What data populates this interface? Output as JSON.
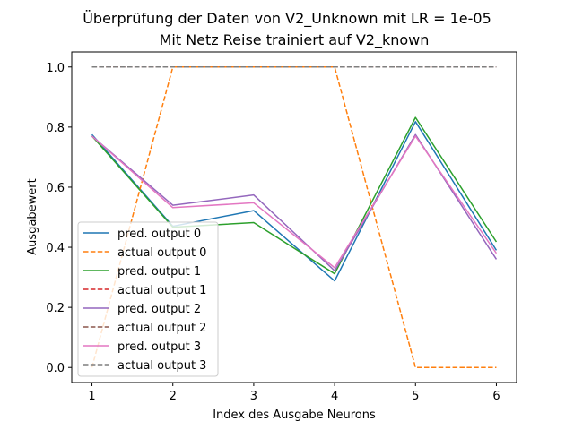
{
  "chart_data": {
    "type": "line",
    "title": "Überprüfung der Daten von V2_Unknown mit LR = 1e-05",
    "subtitle": "Mit Netz Reise trainiert auf V2_known",
    "xlabel": "Index des Ausgabe Neurons",
    "ylabel": "Ausgabewert",
    "x": [
      1,
      2,
      3,
      4,
      5,
      6
    ],
    "xlim": [
      0.75,
      6.25
    ],
    "ylim": [
      -0.05,
      1.05
    ],
    "xticks": [
      "1",
      "2",
      "3",
      "4",
      "5",
      "6"
    ],
    "yticks": [
      "0.0",
      "0.2",
      "0.4",
      "0.6",
      "0.8",
      "1.0"
    ],
    "grid": false,
    "legend_position": "lower-left",
    "series": [
      {
        "name": "pred. output 0",
        "values": [
          0.775,
          0.47,
          0.522,
          0.288,
          0.818,
          0.39
        ],
        "color": "#1f77b4",
        "style": "solid"
      },
      {
        "name": "actual output 0",
        "values": [
          0.0,
          1.0,
          1.0,
          1.0,
          0.0,
          0.0
        ],
        "color": "#ff7f0e",
        "style": "dashed"
      },
      {
        "name": "pred. output 1",
        "values": [
          0.77,
          0.467,
          0.482,
          0.312,
          0.832,
          0.418
        ],
        "color": "#2ca02c",
        "style": "solid"
      },
      {
        "name": "actual output 1",
        "values": [
          1.0,
          1.0,
          1.0,
          1.0,
          1.0,
          1.0
        ],
        "color": "#d62728",
        "style": "dashed"
      },
      {
        "name": "pred. output 2",
        "values": [
          0.77,
          0.54,
          0.574,
          0.322,
          0.775,
          0.36
        ],
        "color": "#9467bd",
        "style": "solid"
      },
      {
        "name": "actual output 2",
        "values": [
          1.0,
          1.0,
          1.0,
          1.0,
          1.0,
          1.0
        ],
        "color": "#8c564b",
        "style": "dashed"
      },
      {
        "name": "pred. output 3",
        "values": [
          0.77,
          0.532,
          0.548,
          0.332,
          0.77,
          0.38
        ],
        "color": "#e377c2",
        "style": "solid"
      },
      {
        "name": "actual output 3",
        "values": [
          1.0,
          1.0,
          1.0,
          1.0,
          1.0,
          1.0
        ],
        "color": "#7f7f7f",
        "style": "dashed"
      }
    ]
  }
}
